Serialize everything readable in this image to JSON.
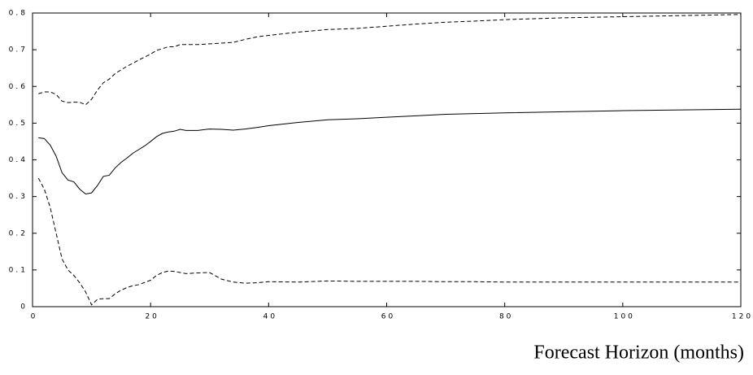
{
  "chart_data": {
    "type": "line",
    "xlabel": "Forecast Horizon (months)",
    "x": [
      1,
      2,
      3,
      4,
      5,
      6,
      7,
      8,
      9,
      10,
      11,
      12,
      13,
      14,
      15,
      16,
      17,
      18,
      19,
      20,
      21,
      22,
      23,
      24,
      25,
      26,
      28,
      30,
      32,
      34,
      36,
      38,
      40,
      45,
      50,
      55,
      60,
      65,
      70,
      75,
      80,
      90,
      100,
      110,
      120
    ],
    "series": [
      {
        "color": "#000000",
        "style": "solid",
        "values": [
          0.46,
          0.458,
          0.44,
          0.41,
          0.365,
          0.345,
          0.34,
          0.32,
          0.307,
          0.31,
          0.33,
          0.355,
          0.358,
          0.378,
          0.393,
          0.405,
          0.418,
          0.428,
          0.438,
          0.45,
          0.463,
          0.472,
          0.476,
          0.478,
          0.483,
          0.48,
          0.48,
          0.484,
          0.483,
          0.481,
          0.484,
          0.488,
          0.493,
          0.502,
          0.509,
          0.512,
          0.516,
          0.52,
          0.524,
          0.526,
          0.528,
          0.531,
          0.534,
          0.536,
          0.538
        ]
      },
      {
        "color": "#000000",
        "style": "dashed",
        "values": [
          0.58,
          0.585,
          0.585,
          0.578,
          0.56,
          0.556,
          0.557,
          0.557,
          0.55,
          0.565,
          0.59,
          0.61,
          0.62,
          0.635,
          0.645,
          0.655,
          0.663,
          0.672,
          0.68,
          0.688,
          0.698,
          0.703,
          0.708,
          0.708,
          0.714,
          0.714,
          0.714,
          0.716,
          0.718,
          0.72,
          0.728,
          0.735,
          0.739,
          0.748,
          0.755,
          0.758,
          0.764,
          0.77,
          0.775,
          0.778,
          0.782,
          0.787,
          0.79,
          0.793,
          0.796
        ]
      },
      {
        "color": "#000000",
        "style": "dashed",
        "values": [
          0.35,
          0.32,
          0.27,
          0.2,
          0.13,
          0.1,
          0.085,
          0.065,
          0.04,
          0.005,
          0.02,
          0.022,
          0.022,
          0.035,
          0.045,
          0.052,
          0.057,
          0.06,
          0.066,
          0.072,
          0.085,
          0.093,
          0.097,
          0.096,
          0.093,
          0.09,
          0.092,
          0.093,
          0.075,
          0.067,
          0.064,
          0.065,
          0.068,
          0.067,
          0.07,
          0.069,
          0.069,
          0.069,
          0.068,
          0.068,
          0.067,
          0.067,
          0.067,
          0.067,
          0.067
        ]
      }
    ],
    "xlim": [
      0,
      120
    ],
    "xticks": [
      0,
      20,
      40,
      60,
      80,
      100,
      120
    ],
    "ylim": [
      0,
      0.8
    ],
    "yticks": [
      0,
      0.1,
      0.2,
      0.3,
      0.4,
      0.5,
      0.6,
      0.7,
      0.8
    ],
    "grid": false
  }
}
